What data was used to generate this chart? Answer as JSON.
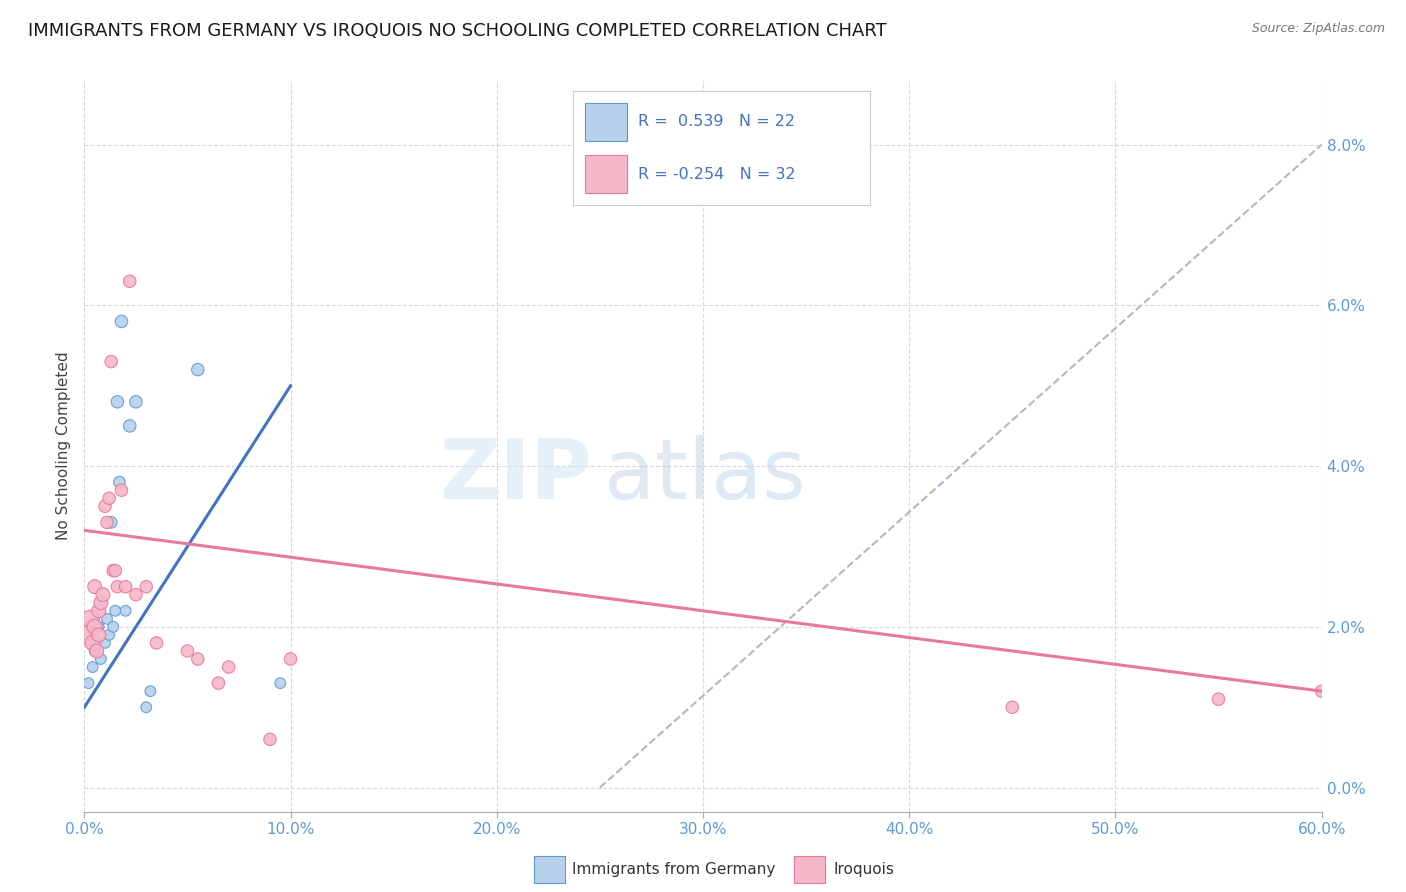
{
  "title": "IMMIGRANTS FROM GERMANY VS IROQUOIS NO SCHOOLING COMPLETED CORRELATION CHART",
  "source": "Source: ZipAtlas.com",
  "ylabel": "No Schooling Completed",
  "watermark_zip": "ZIP",
  "watermark_atlas": "atlas",
  "legend_r1": "R =  0.539   N = 22",
  "legend_r2": "R = -0.254   N = 32",
  "blue_fill": "#b8d0ea",
  "pink_fill": "#f5b8c8",
  "blue_edge": "#5b9bd5",
  "pink_edge": "#e8799a",
  "blue_line": "#4472c4",
  "pink_line": "#e8799a",
  "dash_line": "#b0b8c8",
  "blue_scatter": [
    [
      0.2,
      1.3
    ],
    [
      0.4,
      1.5
    ],
    [
      0.5,
      1.7
    ],
    [
      0.6,
      1.8
    ],
    [
      0.7,
      2.0
    ],
    [
      0.8,
      1.6
    ],
    [
      1.0,
      1.8
    ],
    [
      1.1,
      2.1
    ],
    [
      1.2,
      1.9
    ],
    [
      1.3,
      3.3
    ],
    [
      1.4,
      2.0
    ],
    [
      1.5,
      2.2
    ],
    [
      1.6,
      4.8
    ],
    [
      1.7,
      3.8
    ],
    [
      1.8,
      5.8
    ],
    [
      2.0,
      2.2
    ],
    [
      2.2,
      4.5
    ],
    [
      2.5,
      4.8
    ],
    [
      3.0,
      1.0
    ],
    [
      3.2,
      1.2
    ],
    [
      5.5,
      5.2
    ],
    [
      9.5,
      1.3
    ]
  ],
  "pink_scatter": [
    [
      0.2,
      1.9
    ],
    [
      0.3,
      2.1
    ],
    [
      0.4,
      1.8
    ],
    [
      0.5,
      2.0
    ],
    [
      0.5,
      2.5
    ],
    [
      0.6,
      1.7
    ],
    [
      0.7,
      2.2
    ],
    [
      0.7,
      1.9
    ],
    [
      0.8,
      2.3
    ],
    [
      0.9,
      2.4
    ],
    [
      1.0,
      3.5
    ],
    [
      1.1,
      3.3
    ],
    [
      1.2,
      3.6
    ],
    [
      1.3,
      5.3
    ],
    [
      1.4,
      2.7
    ],
    [
      1.5,
      2.7
    ],
    [
      1.6,
      2.5
    ],
    [
      1.8,
      3.7
    ],
    [
      2.0,
      2.5
    ],
    [
      2.2,
      6.3
    ],
    [
      2.5,
      2.4
    ],
    [
      3.0,
      2.5
    ],
    [
      3.5,
      1.8
    ],
    [
      5.0,
      1.7
    ],
    [
      5.5,
      1.6
    ],
    [
      6.5,
      1.3
    ],
    [
      7.0,
      1.5
    ],
    [
      9.0,
      0.6
    ],
    [
      10.0,
      1.6
    ],
    [
      45.0,
      1.0
    ],
    [
      55.0,
      1.1
    ],
    [
      60.0,
      1.2
    ]
  ],
  "blue_sizes": [
    60,
    60,
    60,
    60,
    60,
    60,
    60,
    60,
    60,
    70,
    60,
    60,
    80,
    70,
    80,
    60,
    80,
    80,
    60,
    60,
    80,
    60
  ],
  "pink_sizes": [
    200,
    160,
    120,
    120,
    100,
    100,
    100,
    100,
    100,
    100,
    80,
    80,
    80,
    80,
    80,
    80,
    80,
    80,
    80,
    80,
    80,
    80,
    80,
    80,
    80,
    80,
    80,
    80,
    80,
    80,
    80,
    80
  ],
  "blue_line_pts": [
    [
      0.0,
      1.0
    ],
    [
      10.0,
      5.0
    ]
  ],
  "pink_line_pts": [
    [
      0.0,
      3.2
    ],
    [
      60.0,
      1.2
    ]
  ],
  "dash_line_pts": [
    [
      25.0,
      0.0
    ],
    [
      60.0,
      8.0
    ]
  ],
  "xlim": [
    0,
    60
  ],
  "ylim": [
    -0.3,
    8.8
  ],
  "xtick_vals": [
    0,
    10,
    20,
    30,
    40,
    50,
    60
  ],
  "ytick_vals": [
    0,
    2,
    4,
    6,
    8
  ],
  "background_color": "#ffffff",
  "grid_color": "#cdd5e0",
  "title_fontsize": 13,
  "axis_label_fontsize": 11,
  "tick_fontsize": 11,
  "tick_color": "#5b9bd5"
}
